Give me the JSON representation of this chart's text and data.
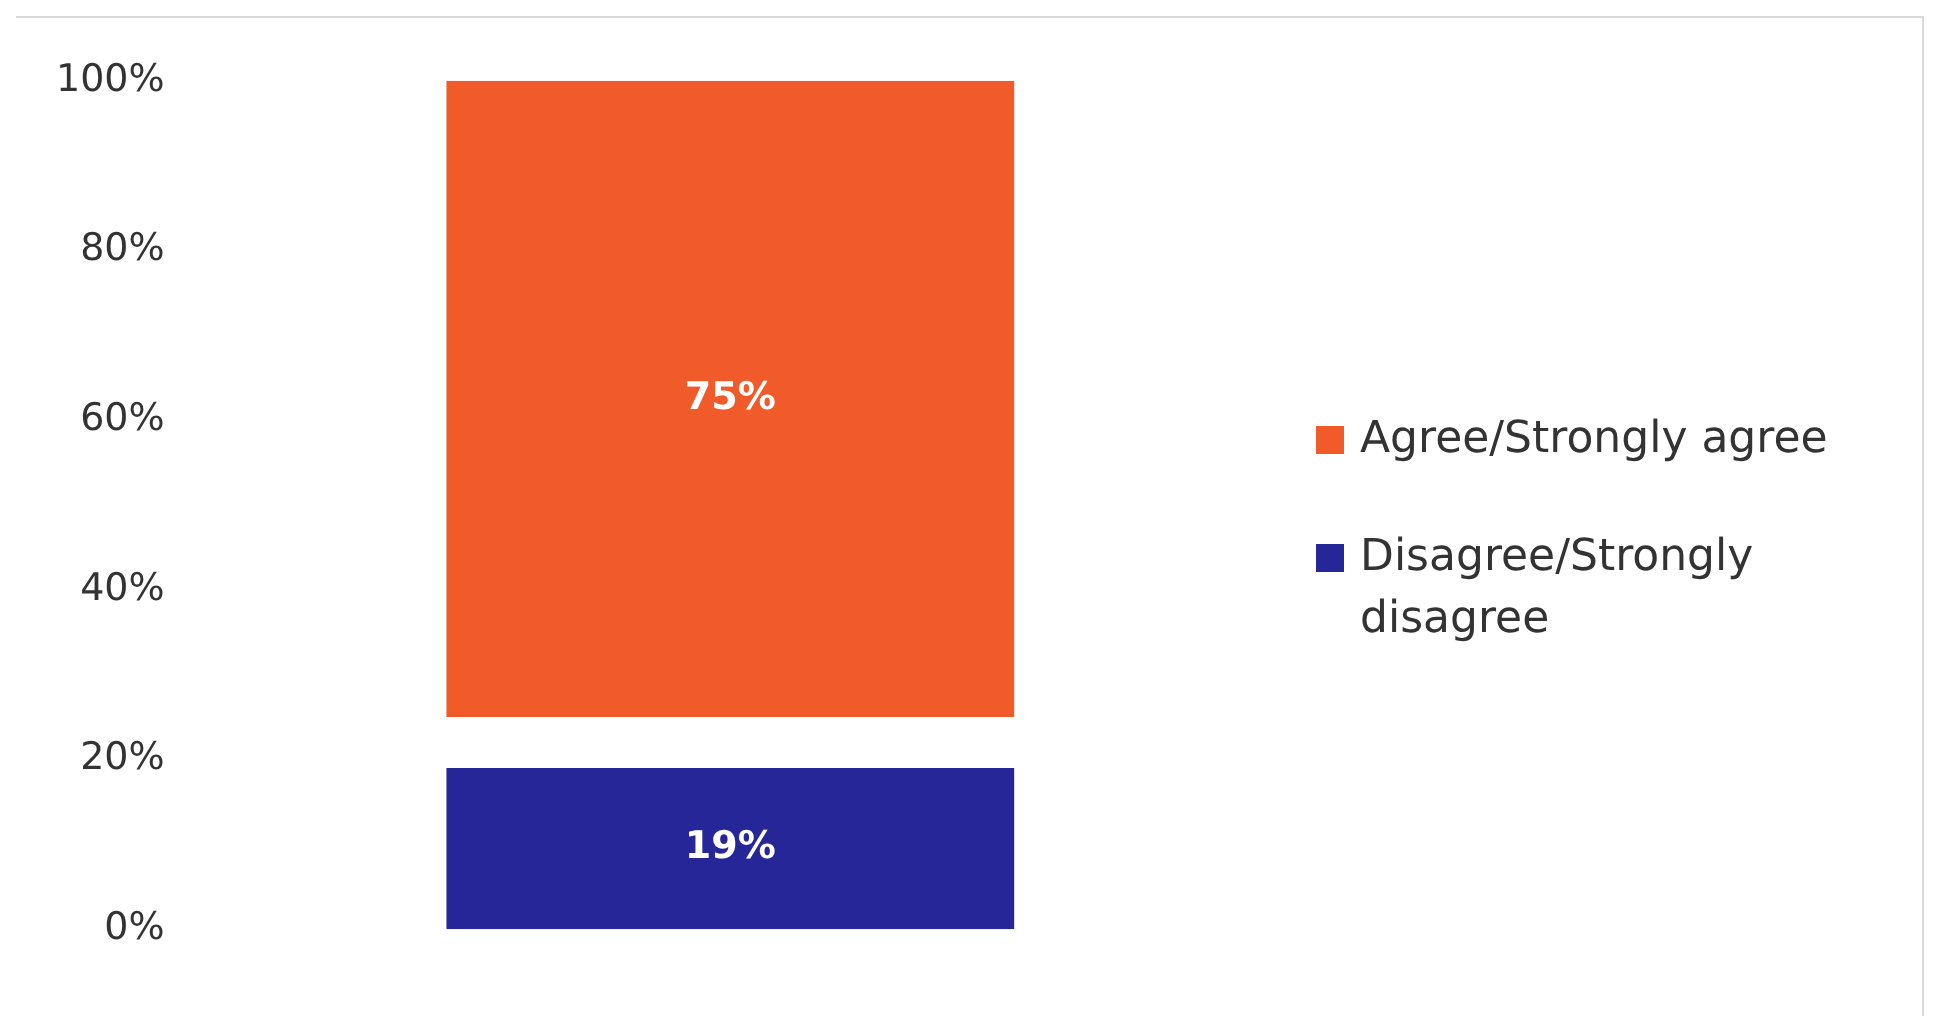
{
  "chart_data": {
    "type": "bar",
    "categories": [
      null
    ],
    "series": [
      {
        "name": "Agree/Strongly agree",
        "color": "#f15a29",
        "values": [
          75
        ],
        "base": [
          25
        ],
        "value_labels": [
          "75%"
        ]
      },
      {
        "name": "Disagree/Strongly disagree",
        "color": "#262699",
        "values": [
          19
        ],
        "base": [
          0
        ],
        "value_labels": [
          "19%"
        ]
      }
    ],
    "ylim": [
      0,
      100
    ],
    "yticks": [
      {
        "value": 0,
        "label": "0%"
      },
      {
        "value": 20,
        "label": "20%"
      },
      {
        "value": 40,
        "label": "40%"
      },
      {
        "value": 60,
        "label": "60%"
      },
      {
        "value": 80,
        "label": "80%"
      },
      {
        "value": 100,
        "label": "100%"
      }
    ],
    "grid": false,
    "legend": "right"
  }
}
